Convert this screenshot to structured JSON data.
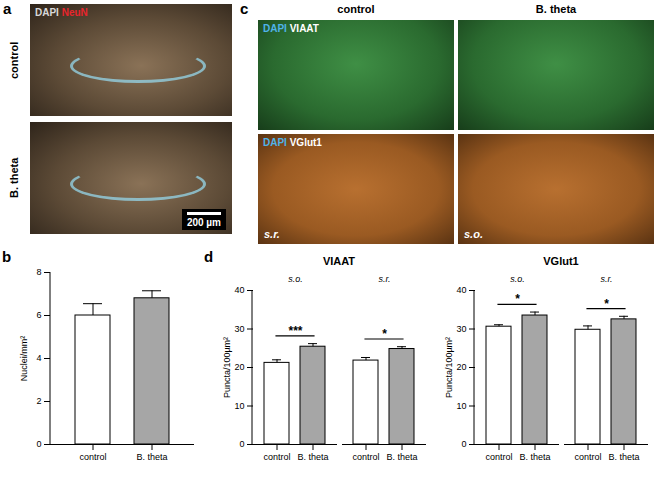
{
  "images": {
    "a": {
      "label": "a",
      "row_labels": [
        "control",
        "B. theta"
      ],
      "stain": [
        {
          "text": "DAPI",
          "color": "#d9d9d9"
        },
        {
          "text": "NeuN",
          "color": "#e8252d"
        }
      ],
      "scale_bar": "200 µm"
    },
    "c": {
      "label": "c",
      "column_labels": [
        "control",
        "B. theta"
      ],
      "rows": [
        {
          "stain": [
            {
              "text": "DAPI",
              "color": "#4fb3e8"
            },
            {
              "text": "VIAAT",
              "color": "#ffffff"
            }
          ]
        },
        {
          "stain": [
            {
              "text": "DAPI",
              "color": "#4fb3e8"
            },
            {
              "text": "VGlut1",
              "color": "#ffffff"
            }
          ],
          "regions": [
            "s.r.",
            "s.o."
          ]
        }
      ]
    }
  },
  "chart_data": [
    {
      "type": "bar",
      "panel_label": "b",
      "ylabel": "Nuclei/mm²",
      "categories": [
        "control",
        "B. theta"
      ],
      "values": [
        6.0,
        6.8
      ],
      "errors": [
        0.55,
        0.35
      ],
      "colors": [
        "#ffffff",
        "#a6a6a6"
      ],
      "ylim": [
        0,
        8
      ],
      "yticks": [
        0,
        2,
        4,
        6,
        8
      ]
    },
    {
      "type": "bar",
      "panel_label": "d",
      "title": "VIAAT",
      "ylabel": "Puncta/100µm²",
      "categories": [
        "control",
        "B. theta",
        "control",
        "B. theta"
      ],
      "groups": [
        "s.o.",
        "s.o.",
        "s.r.",
        "s.r."
      ],
      "values": [
        21.2,
        25.4,
        21.8,
        24.8
      ],
      "errors": [
        0.8,
        0.8,
        0.8,
        0.6
      ],
      "colors": [
        "#ffffff",
        "#a6a6a6",
        "#ffffff",
        "#a6a6a6"
      ],
      "ylim": [
        0,
        40
      ],
      "yticks": [
        0,
        10,
        20,
        30,
        40
      ],
      "significance": [
        {
          "group": "s.o.",
          "label": "***"
        },
        {
          "group": "s.r.",
          "label": "*"
        }
      ]
    },
    {
      "type": "bar",
      "title": "VGlut1",
      "ylabel": "Puncta/100µm²",
      "categories": [
        "control",
        "B. theta",
        "control",
        "B. theta"
      ],
      "groups": [
        "s.o.",
        "s.o.",
        "s.r.",
        "s.r."
      ],
      "values": [
        30.6,
        33.5,
        29.8,
        32.5
      ],
      "errors": [
        0.5,
        0.9,
        1.0,
        0.8
      ],
      "colors": [
        "#ffffff",
        "#a6a6a6",
        "#ffffff",
        "#a6a6a6"
      ],
      "ylim": [
        0,
        40
      ],
      "yticks": [
        0,
        10,
        20,
        30,
        40
      ],
      "significance": [
        {
          "group": "s.o.",
          "label": "*"
        },
        {
          "group": "s.r.",
          "label": "*"
        }
      ]
    }
  ]
}
